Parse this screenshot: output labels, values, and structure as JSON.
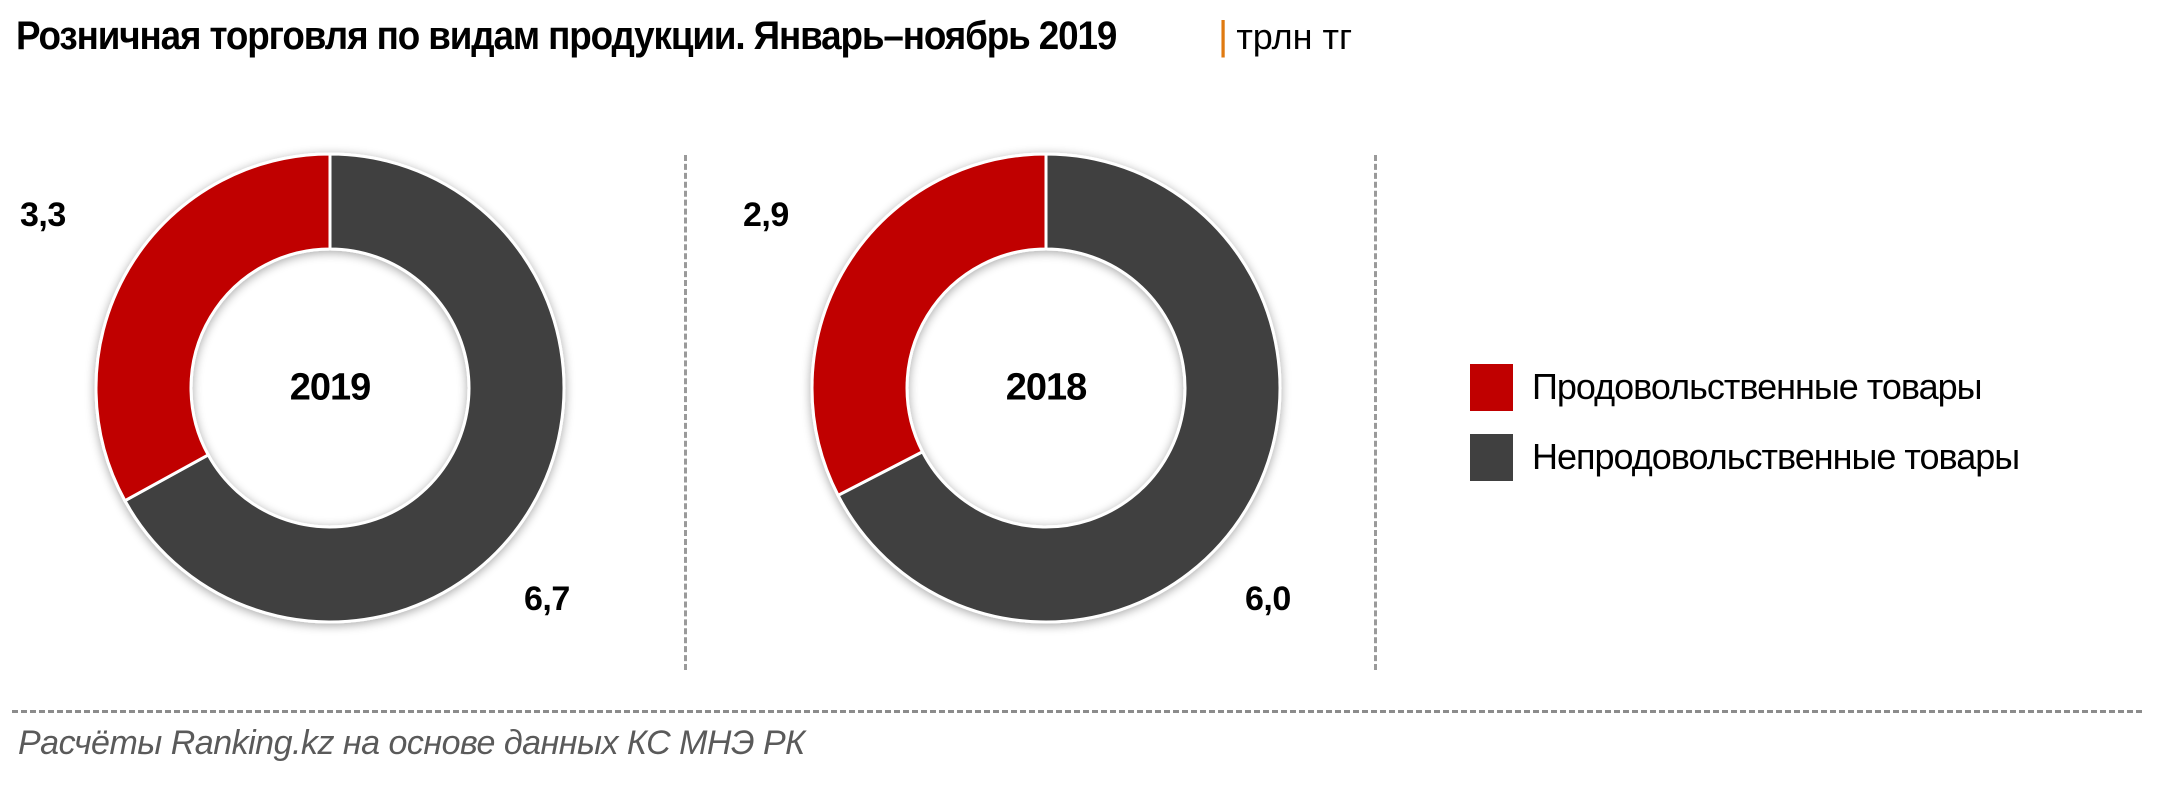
{
  "header": {
    "title": "Розничная торговля по видам продукции. Январь–ноябрь 2019",
    "separator": "|",
    "unit": "трлн тг"
  },
  "colors": {
    "food": "#c00000",
    "nonfood": "#404040",
    "separator": "#e07a10",
    "divider": "#9a9a9a"
  },
  "charts": [
    {
      "year_label": "2019",
      "food_label": "3,3",
      "nonfood_label": "6,7"
    },
    {
      "year_label": "2018",
      "food_label": "2,9",
      "nonfood_label": "6,0"
    }
  ],
  "legend": {
    "items": [
      {
        "label": "Продовольственные товары",
        "color": "#c00000"
      },
      {
        "label": "Непродовольственные товары",
        "color": "#404040"
      }
    ]
  },
  "footer": {
    "source": "Расчёты Ranking.kz на основе данных  КС МНЭ РК"
  },
  "chart_data": [
    {
      "type": "pie",
      "variant": "donut",
      "title": "2019",
      "unit": "трлн тг",
      "categories": [
        "Продовольственные товары",
        "Непродовольственные товары"
      ],
      "values": [
        3.3,
        6.7
      ],
      "colors": [
        "#c00000",
        "#404040"
      ],
      "legend_position": "right"
    },
    {
      "type": "pie",
      "variant": "donut",
      "title": "2018",
      "unit": "трлн тг",
      "categories": [
        "Продовольственные товары",
        "Непродовольственные товары"
      ],
      "values": [
        2.9,
        6.0
      ],
      "colors": [
        "#c00000",
        "#404040"
      ],
      "legend_position": "right"
    }
  ]
}
